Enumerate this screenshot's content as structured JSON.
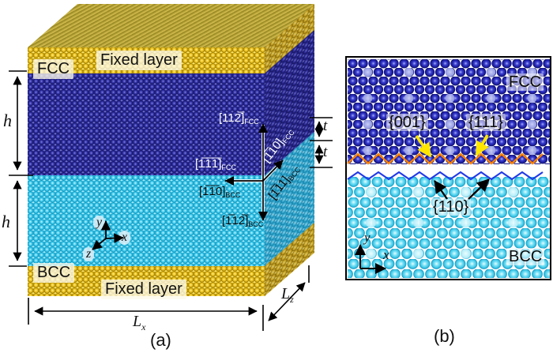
{
  "figure": {
    "panel_a": {
      "caption": "(a)",
      "region_labels": {
        "fcc": "FCC",
        "bcc": "BCC",
        "fixed_layer_top": "Fixed layer",
        "fixed_layer_bottom": "Fixed layer"
      },
      "dimensions": {
        "h_upper": "h",
        "h_lower": "h",
        "lx_main": "L",
        "lx_sub": "x",
        "lz_main": "L",
        "lz_sub": "z",
        "t_upper": "t",
        "t_lower": "t"
      },
      "gizmo": {
        "x": "x",
        "y": "y",
        "z": "z"
      },
      "crystal_directions": {
        "up_fcc": {
          "main": "[112̅]",
          "sub": "FCC"
        },
        "diag_fcc": {
          "main": "[1̅10]",
          "sub": "FCC"
        },
        "diag_bcc": {
          "main": "[1̅11]",
          "sub": "BCC"
        },
        "left_fcc": {
          "main": "[1̅1̅1̅]",
          "sub": "FCC"
        },
        "left_bcc": {
          "main": "[1̅1̅0]",
          "sub": "BCC"
        },
        "down_bcc": {
          "main": "[1̅12̅]",
          "sub": "BCC"
        }
      }
    },
    "panel_b": {
      "caption": "(b)",
      "region_labels": {
        "fcc": "FCC",
        "bcc": "BCC"
      },
      "facet_labels": {
        "f001": "{001}",
        "f111": "{111}",
        "f110": "{110}"
      },
      "gizmo": {
        "x": "x",
        "y": "y"
      }
    },
    "colors": {
      "fcc_atom": "#2a2a96",
      "bcc_atom": "#3cc8e8",
      "fixed_layer_atom": "#d9b514",
      "interface_line_fcc_side": "#ff8200",
      "interface_line_bcc_side": "#2038e8",
      "facet_arrow": "#ffe600"
    }
  }
}
